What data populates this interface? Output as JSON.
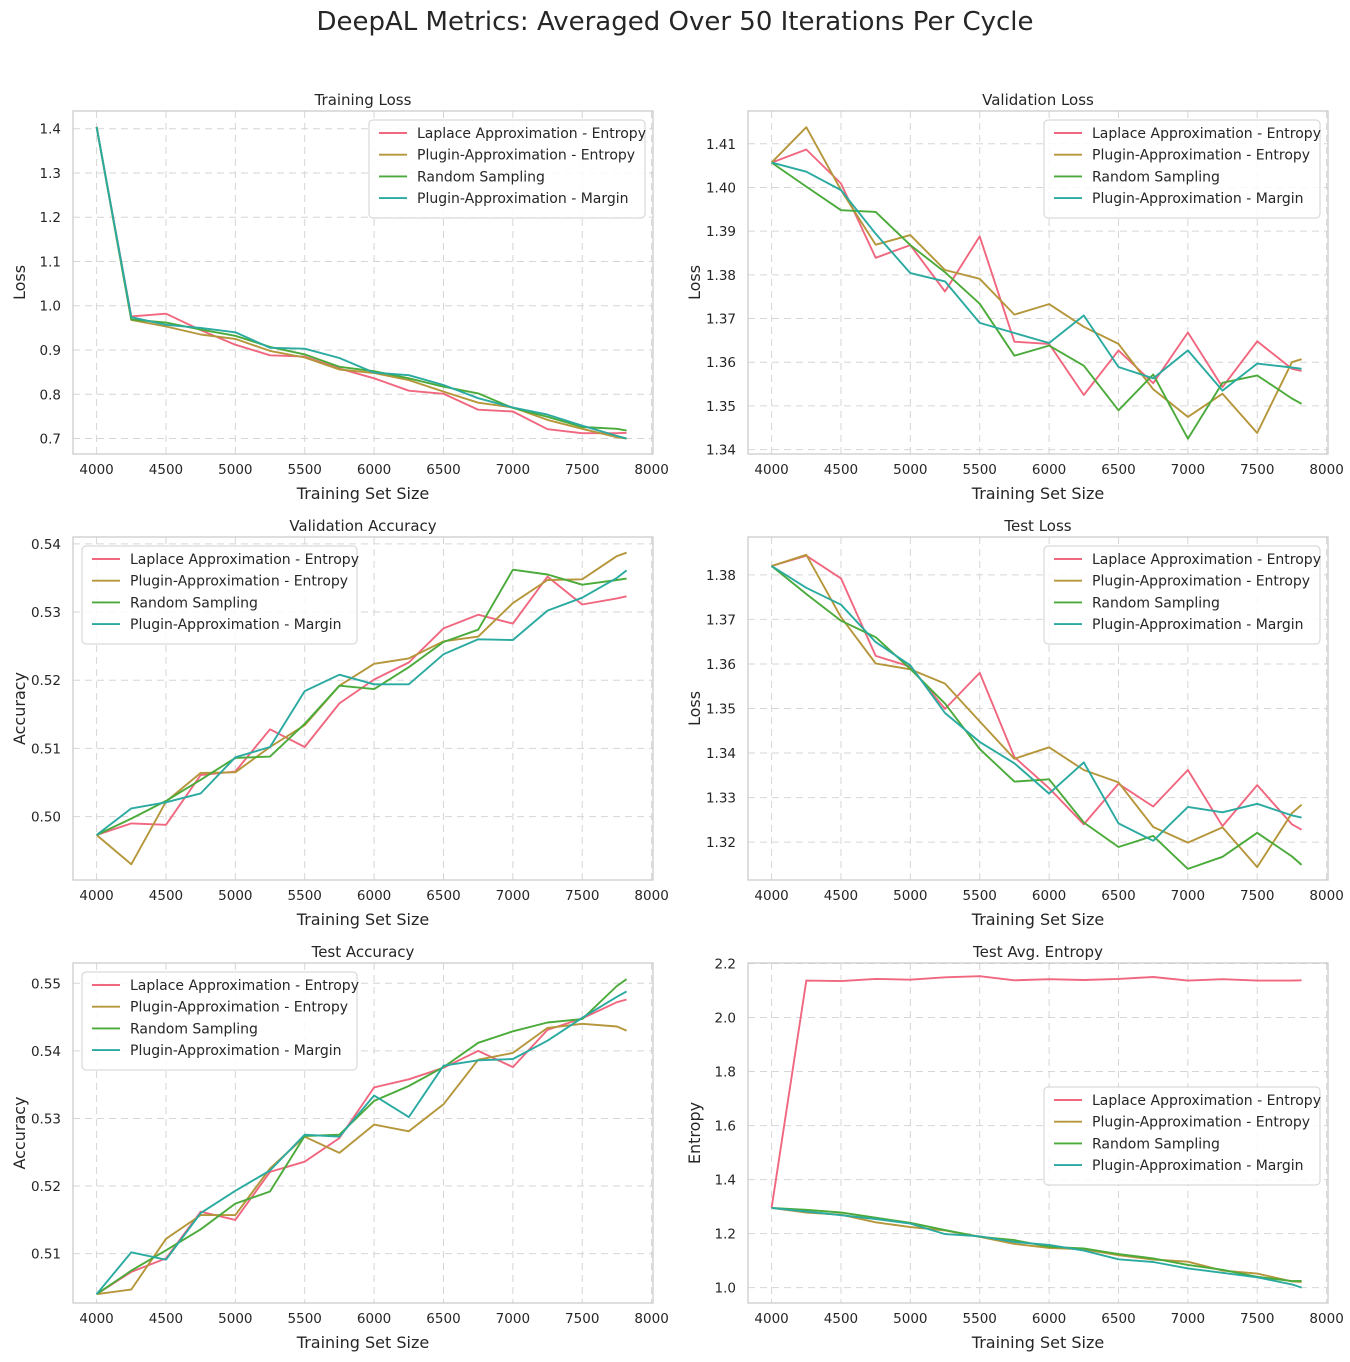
{
  "figure": {
    "title": "DeepAL Metrics: Averaged Over 50 Iterations Per Cycle"
  },
  "colors": {
    "Laplace Approximation - Entropy": "#f0677f",
    "Plugin-Approximation - Entropy": "#b5963a",
    "Random Sampling": "#4bab3a",
    "Plugin-Approximation - Margin": "#2aaaa0"
  },
  "chart_data": [
    {
      "type": "line",
      "title": "Training Loss",
      "xlabel": "Training Set Size",
      "ylabel": "Loss",
      "xlim": [
        3830,
        8010
      ],
      "ylim": [
        0.665,
        1.44
      ],
      "xticks": [
        4000,
        4500,
        5000,
        5500,
        6000,
        6500,
        7000,
        7500,
        8000
      ],
      "yticks": [
        0.7,
        0.8,
        0.9,
        1.0,
        1.1,
        1.2,
        1.3,
        1.4
      ],
      "ytick_labels": [
        "0.7",
        "0.8",
        "0.9",
        "1.0",
        "1.1",
        "1.2",
        "1.3",
        "1.4"
      ],
      "legend_position": "upper-right",
      "x": [
        4000,
        4250,
        4500,
        4750,
        5000,
        5250,
        5500,
        5750,
        6000,
        6250,
        6500,
        6750,
        7000,
        7250,
        7500,
        7750,
        7820
      ],
      "series": [
        {
          "name": "Laplace Approximation - Entropy",
          "values": [
            1.404,
            0.976,
            0.982,
            0.945,
            0.912,
            0.888,
            0.885,
            0.858,
            0.836,
            0.808,
            0.801,
            0.765,
            0.761,
            0.721,
            0.712,
            0.712,
            0.713
          ]
        },
        {
          "name": "Plugin-Approximation - Entropy",
          "values": [
            1.404,
            0.968,
            0.953,
            0.935,
            0.925,
            0.898,
            0.883,
            0.856,
            0.848,
            0.832,
            0.806,
            0.781,
            0.77,
            0.742,
            0.722,
            0.703,
            0.7
          ]
        },
        {
          "name": "Random Sampling",
          "values": [
            1.404,
            0.969,
            0.962,
            0.946,
            0.932,
            0.907,
            0.89,
            0.862,
            0.852,
            0.836,
            0.817,
            0.802,
            0.769,
            0.749,
            0.726,
            0.722,
            0.718
          ]
        },
        {
          "name": "Plugin-Approximation - Margin",
          "values": [
            1.404,
            0.974,
            0.957,
            0.95,
            0.94,
            0.905,
            0.903,
            0.882,
            0.849,
            0.843,
            0.821,
            0.791,
            0.77,
            0.754,
            0.729,
            0.706,
            0.7
          ]
        }
      ]
    },
    {
      "type": "line",
      "title": "Validation Loss",
      "xlabel": "Training Set Size",
      "ylabel": "Loss",
      "xlim": [
        3830,
        8010
      ],
      "ylim": [
        1.339,
        1.4175
      ],
      "xticks": [
        4000,
        4500,
        5000,
        5500,
        6000,
        6500,
        7000,
        7500,
        8000
      ],
      "yticks": [
        1.34,
        1.35,
        1.36,
        1.37,
        1.38,
        1.39,
        1.4,
        1.41
      ],
      "ytick_labels": [
        "1.34",
        "1.35",
        "1.36",
        "1.37",
        "1.38",
        "1.39",
        "1.40",
        "1.41"
      ],
      "legend_position": "upper-right",
      "x": [
        4000,
        4250,
        4500,
        4750,
        5000,
        5250,
        5500,
        5750,
        6000,
        6250,
        6500,
        6750,
        7000,
        7250,
        7500,
        7750,
        7820
      ],
      "series": [
        {
          "name": "Laplace Approximation - Entropy",
          "values": [
            1.4057,
            1.4087,
            1.4009,
            1.3839,
            1.3868,
            1.3762,
            1.3888,
            1.3647,
            1.3642,
            1.3525,
            1.3627,
            1.3552,
            1.3668,
            1.3543,
            1.3648,
            1.3585,
            1.358
          ]
        },
        {
          "name": "Plugin-Approximation - Entropy",
          "values": [
            1.4057,
            1.4138,
            1.3994,
            1.3869,
            1.3891,
            1.3811,
            1.3791,
            1.3709,
            1.3733,
            1.3681,
            1.3642,
            1.3538,
            1.3475,
            1.3528,
            1.3438,
            1.36,
            1.3607
          ]
        },
        {
          "name": "Random Sampling",
          "values": [
            1.4057,
            1.4002,
            1.3948,
            1.3944,
            1.3868,
            1.3806,
            1.3734,
            1.3615,
            1.3638,
            1.3592,
            1.349,
            1.3572,
            1.3425,
            1.3553,
            1.357,
            1.3517,
            1.3505
          ]
        },
        {
          "name": "Plugin-Approximation - Margin",
          "values": [
            1.4057,
            1.4036,
            1.3994,
            1.3894,
            1.3804,
            1.3785,
            1.369,
            1.3667,
            1.3644,
            1.3707,
            1.3589,
            1.3563,
            1.3627,
            1.3535,
            1.3597,
            1.3588,
            1.3585
          ]
        }
      ]
    },
    {
      "type": "line",
      "title": "Validation Accuracy",
      "xlabel": "Training Set Size",
      "ylabel": "Accuracy",
      "xlim": [
        3830,
        8010
      ],
      "ylim": [
        0.4907,
        0.541
      ],
      "xticks": [
        4000,
        4500,
        5000,
        5500,
        6000,
        6500,
        7000,
        7500,
        8000
      ],
      "yticks": [
        0.5,
        0.51,
        0.52,
        0.53,
        0.54
      ],
      "ytick_labels": [
        "0.50",
        "0.51",
        "0.52",
        "0.53",
        "0.54"
      ],
      "legend_position": "upper-left",
      "x": [
        4000,
        4250,
        4500,
        4750,
        5000,
        5250,
        5500,
        5750,
        6000,
        6250,
        6500,
        6750,
        7000,
        7250,
        7500,
        7750,
        7820
      ],
      "series": [
        {
          "name": "Laplace Approximation - Entropy",
          "values": [
            0.4973,
            0.499,
            0.4988,
            0.5061,
            0.5066,
            0.5128,
            0.5102,
            0.5166,
            0.5201,
            0.5226,
            0.5276,
            0.5296,
            0.5283,
            0.5352,
            0.5311,
            0.532,
            0.5323
          ]
        },
        {
          "name": "Plugin-Approximation - Entropy",
          "values": [
            0.4973,
            0.493,
            0.5022,
            0.5064,
            0.5065,
            0.5102,
            0.5134,
            0.5192,
            0.5224,
            0.5232,
            0.5257,
            0.5264,
            0.5313,
            0.5347,
            0.5348,
            0.5382,
            0.5387
          ]
        },
        {
          "name": "Random Sampling",
          "values": [
            0.4973,
            0.4997,
            0.5023,
            0.5054,
            0.5086,
            0.5088,
            0.5136,
            0.5192,
            0.5187,
            0.5219,
            0.5256,
            0.5274,
            0.5362,
            0.5355,
            0.534,
            0.5347,
            0.5349
          ]
        },
        {
          "name": "Plugin-Approximation - Margin",
          "values": [
            0.4973,
            0.5012,
            0.5021,
            0.5034,
            0.5087,
            0.5102,
            0.5184,
            0.5208,
            0.5194,
            0.5194,
            0.5238,
            0.526,
            0.5259,
            0.5302,
            0.5321,
            0.535,
            0.5361
          ]
        }
      ]
    },
    {
      "type": "line",
      "title": "Test Loss",
      "xlabel": "Training Set Size",
      "ylabel": "Loss",
      "xlim": [
        3830,
        8010
      ],
      "ylim": [
        1.3115,
        1.3885
      ],
      "xticks": [
        4000,
        4500,
        5000,
        5500,
        6000,
        6500,
        7000,
        7500,
        8000
      ],
      "yticks": [
        1.32,
        1.33,
        1.34,
        1.35,
        1.36,
        1.37,
        1.38
      ],
      "ytick_labels": [
        "1.32",
        "1.33",
        "1.34",
        "1.35",
        "1.36",
        "1.37",
        "1.38"
      ],
      "legend_position": "upper-right",
      "x": [
        4000,
        4250,
        4500,
        4750,
        5000,
        5250,
        5500,
        5750,
        6000,
        6250,
        6500,
        6750,
        7000,
        7250,
        7500,
        7750,
        7820
      ],
      "series": [
        {
          "name": "Laplace Approximation - Entropy",
          "values": [
            1.382,
            1.3843,
            1.3792,
            1.3618,
            1.3594,
            1.3499,
            1.358,
            1.3391,
            1.3321,
            1.324,
            1.3331,
            1.328,
            1.3362,
            1.3236,
            1.3328,
            1.324,
            1.3228
          ]
        },
        {
          "name": "Plugin-Approximation - Entropy",
          "values": [
            1.382,
            1.3845,
            1.3705,
            1.3601,
            1.3588,
            1.3556,
            1.3471,
            1.3387,
            1.3413,
            1.3362,
            1.3334,
            1.3234,
            1.3199,
            1.3233,
            1.3144,
            1.3265,
            1.3284
          ]
        },
        {
          "name": "Random Sampling",
          "values": [
            1.382,
            1.3757,
            1.3697,
            1.366,
            1.3589,
            1.3511,
            1.3409,
            1.3336,
            1.3341,
            1.3244,
            1.3189,
            1.3214,
            1.314,
            1.3167,
            1.3221,
            1.3168,
            1.3149
          ]
        },
        {
          "name": "Plugin-Approximation - Margin",
          "values": [
            1.382,
            1.3771,
            1.3733,
            1.3649,
            1.3597,
            1.349,
            1.3425,
            1.3377,
            1.3309,
            1.3379,
            1.3242,
            1.3203,
            1.3279,
            1.3267,
            1.3286,
            1.326,
            1.3255
          ]
        }
      ]
    },
    {
      "type": "line",
      "title": "Test Accuracy",
      "xlabel": "Training Set Size",
      "ylabel": "Accuracy",
      "xlim": [
        3830,
        8010
      ],
      "ylim": [
        0.5027,
        0.553
      ],
      "xticks": [
        4000,
        4500,
        5000,
        5500,
        6000,
        6500,
        7000,
        7500,
        8000
      ],
      "yticks": [
        0.51,
        0.52,
        0.53,
        0.54,
        0.55
      ],
      "ytick_labels": [
        "0.51",
        "0.52",
        "0.53",
        "0.54",
        "0.55"
      ],
      "legend_position": "upper-left",
      "x": [
        4000,
        4250,
        4500,
        4750,
        5000,
        5250,
        5500,
        5750,
        6000,
        6250,
        6500,
        6750,
        7000,
        7250,
        7500,
        7750,
        7820
      ],
      "series": [
        {
          "name": "Laplace Approximation - Entropy",
          "values": [
            0.504,
            0.5073,
            0.5093,
            0.5162,
            0.515,
            0.5221,
            0.5236,
            0.5271,
            0.5346,
            0.5358,
            0.5375,
            0.54,
            0.5376,
            0.5431,
            0.5448,
            0.5472,
            0.5476
          ]
        },
        {
          "name": "Plugin-Approximation - Entropy",
          "values": [
            0.504,
            0.5047,
            0.5122,
            0.5157,
            0.5157,
            0.5226,
            0.5273,
            0.5249,
            0.5291,
            0.5281,
            0.5321,
            0.5387,
            0.5397,
            0.5434,
            0.544,
            0.5436,
            0.543
          ]
        },
        {
          "name": "Random Sampling",
          "values": [
            0.504,
            0.5075,
            0.5105,
            0.5136,
            0.5174,
            0.5192,
            0.5274,
            0.5276,
            0.5326,
            0.5348,
            0.5376,
            0.5412,
            0.5429,
            0.5442,
            0.5447,
            0.5496,
            0.5506
          ]
        },
        {
          "name": "Plugin-Approximation - Margin",
          "values": [
            0.504,
            0.5102,
            0.5091,
            0.516,
            0.5193,
            0.5223,
            0.5276,
            0.5273,
            0.5334,
            0.5302,
            0.5378,
            0.5386,
            0.5388,
            0.5415,
            0.5449,
            0.548,
            0.5488
          ]
        }
      ]
    },
    {
      "type": "line",
      "title": "Test Avg. Entropy",
      "xlabel": "Training Set Size",
      "ylabel": "Entropy",
      "xlim": [
        3830,
        8010
      ],
      "ylim": [
        0.943,
        2.202
      ],
      "xticks": [
        4000,
        4500,
        5000,
        5500,
        6000,
        6500,
        7000,
        7500,
        8000
      ],
      "yticks": [
        1.0,
        1.2,
        1.4,
        1.6,
        1.8,
        2.0,
        2.2
      ],
      "ytick_labels": [
        "1.0",
        "1.2",
        "1.4",
        "1.6",
        "1.8",
        "2.0",
        "2.2"
      ],
      "legend_position": "center-right",
      "x": [
        4000,
        4250,
        4500,
        4750,
        5000,
        5250,
        5500,
        5750,
        6000,
        6250,
        6500,
        6750,
        7000,
        7250,
        7500,
        7750,
        7820
      ],
      "series": [
        {
          "name": "Laplace Approximation - Entropy",
          "values": [
            1.295,
            2.137,
            2.135,
            2.143,
            2.14,
            2.149,
            2.153,
            2.138,
            2.142,
            2.139,
            2.143,
            2.15,
            2.137,
            2.142,
            2.137,
            2.137,
            2.138
          ]
        },
        {
          "name": "Plugin-Approximation - Entropy",
          "values": [
            1.295,
            1.278,
            1.27,
            1.242,
            1.224,
            1.212,
            1.188,
            1.162,
            1.147,
            1.142,
            1.12,
            1.104,
            1.096,
            1.063,
            1.052,
            1.023,
            1.021
          ]
        },
        {
          "name": "Random Sampling",
          "values": [
            1.295,
            1.288,
            1.278,
            1.259,
            1.24,
            1.213,
            1.188,
            1.176,
            1.151,
            1.145,
            1.124,
            1.108,
            1.084,
            1.066,
            1.04,
            1.024,
            1.025
          ]
        },
        {
          "name": "Plugin-Approximation - Margin",
          "values": [
            1.295,
            1.282,
            1.268,
            1.254,
            1.237,
            1.198,
            1.19,
            1.169,
            1.158,
            1.137,
            1.105,
            1.095,
            1.071,
            1.055,
            1.038,
            1.012,
            1.0
          ]
        }
      ]
    }
  ]
}
